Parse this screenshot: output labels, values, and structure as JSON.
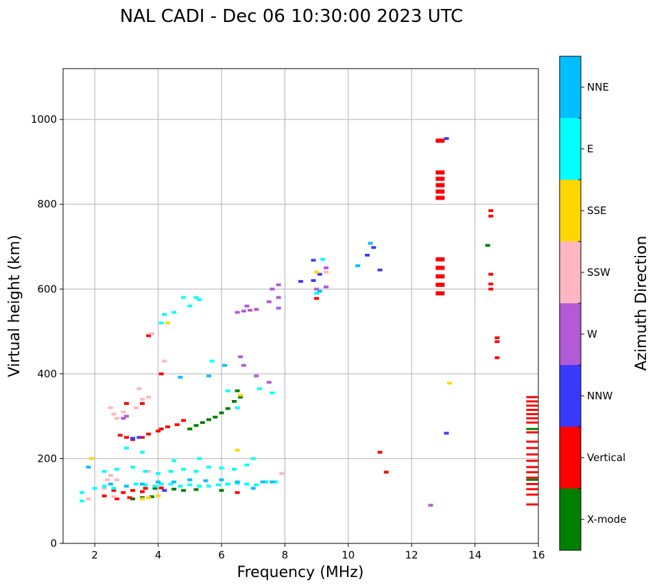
{
  "colors": {
    "X-mode": "#008000",
    "Vertical": "#ff0000",
    "NNW": "#3a3aff",
    "W": "#b35ad6",
    "SSW": "#ffb6c1",
    "SSE": "#ffd700",
    "E": "#00ffff",
    "NNE": "#00bfff"
  },
  "chart_data": {
    "type": "scatter",
    "title": "NAL CADI - Dec 06 10:30:00 2023 UTC",
    "xlabel": "Frequency (MHz)",
    "ylabel": "Virtual height (km)",
    "xlim": [
      1,
      16
    ],
    "ylim": [
      0,
      1120
    ],
    "xticks": [
      "2",
      "4",
      "6",
      "8",
      "10",
      "12",
      "14",
      "16"
    ],
    "yticks": [
      "0",
      "200",
      "400",
      "600",
      "800",
      "1000"
    ],
    "grid": true,
    "colorbar": {
      "title": "Azimuth Direction",
      "categories": [
        "X-mode",
        "Vertical",
        "NNW",
        "W",
        "SSW",
        "SSE",
        "E",
        "NNE"
      ]
    },
    "series": [
      {
        "name": "X-mode",
        "points": [
          [
            5.0,
            270
          ],
          [
            5.2,
            278
          ],
          [
            5.4,
            285
          ],
          [
            5.6,
            292
          ],
          [
            5.8,
            298
          ],
          [
            6.0,
            308
          ],
          [
            6.2,
            318
          ],
          [
            6.4,
            335
          ],
          [
            6.6,
            345
          ],
          [
            6.5,
            360
          ],
          [
            3.2,
            105
          ],
          [
            3.5,
            108
          ],
          [
            3.8,
            110
          ],
          [
            4.5,
            128
          ],
          [
            4.8,
            125
          ],
          [
            5.2,
            127
          ],
          [
            6.0,
            125
          ],
          [
            3.9,
            130
          ],
          [
            14.4,
            703
          ],
          [
            15.8,
            150
          ],
          [
            15.8,
            270
          ]
        ]
      },
      {
        "name": "Vertical",
        "points": [
          [
            2.6,
            125
          ],
          [
            2.9,
            120
          ],
          [
            3.2,
            125
          ],
          [
            3.5,
            122
          ],
          [
            2.3,
            112
          ],
          [
            2.7,
            105
          ],
          [
            3.1,
            108
          ],
          [
            3.6,
            130
          ],
          [
            4.1,
            131
          ],
          [
            2.8,
            255
          ],
          [
            3.0,
            250
          ],
          [
            3.2,
            245
          ],
          [
            3.5,
            250
          ],
          [
            3.7,
            258
          ],
          [
            4.0,
            265
          ],
          [
            4.1,
            270
          ],
          [
            4.3,
            275
          ],
          [
            4.6,
            280
          ],
          [
            4.8,
            290
          ],
          [
            3.0,
            330
          ],
          [
            3.5,
            330
          ],
          [
            4.1,
            400
          ],
          [
            3.7,
            490
          ],
          [
            6.5,
            120
          ],
          [
            9.0,
            578
          ],
          [
            11.0,
            215
          ],
          [
            11.2,
            168
          ],
          [
            12.9,
            950
          ],
          [
            12.9,
            875
          ],
          [
            12.9,
            860
          ],
          [
            12.9,
            845
          ],
          [
            12.9,
            830
          ],
          [
            12.9,
            815
          ],
          [
            12.9,
            670
          ],
          [
            12.9,
            650
          ],
          [
            12.9,
            630
          ],
          [
            12.9,
            610
          ],
          [
            12.9,
            590
          ],
          [
            14.5,
            785
          ],
          [
            14.5,
            772
          ],
          [
            14.5,
            635
          ],
          [
            14.5,
            612
          ],
          [
            14.5,
            600
          ],
          [
            14.7,
            485
          ],
          [
            14.7,
            476
          ],
          [
            14.7,
            438
          ],
          [
            15.8,
            345
          ],
          [
            15.8,
            335
          ],
          [
            15.8,
            325
          ],
          [
            15.8,
            315
          ],
          [
            15.8,
            305
          ],
          [
            15.8,
            295
          ],
          [
            15.8,
            285
          ],
          [
            15.8,
            262
          ],
          [
            15.8,
            240
          ],
          [
            15.8,
            225
          ],
          [
            15.8,
            210
          ],
          [
            15.8,
            195
          ],
          [
            15.8,
            180
          ],
          [
            15.8,
            168
          ],
          [
            15.8,
            155
          ],
          [
            15.8,
            140
          ],
          [
            15.8,
            128
          ],
          [
            15.8,
            115
          ],
          [
            15.8,
            92
          ]
        ]
      },
      {
        "name": "NNW",
        "points": [
          [
            8.5,
            618
          ],
          [
            8.9,
            668
          ],
          [
            8.9,
            620
          ],
          [
            9.1,
            635
          ],
          [
            10.6,
            680
          ],
          [
            10.8,
            698
          ],
          [
            11.0,
            645
          ],
          [
            13.1,
            955
          ],
          [
            13.1,
            260
          ],
          [
            4.2,
            125
          ],
          [
            6.2,
            140
          ],
          [
            7.7,
            145
          ],
          [
            3.2,
            248
          ],
          [
            3.4,
            250
          ]
        ]
      },
      {
        "name": "W",
        "points": [
          [
            6.5,
            545
          ],
          [
            6.7,
            548
          ],
          [
            6.9,
            550
          ],
          [
            7.1,
            552
          ],
          [
            6.8,
            560
          ],
          [
            7.5,
            570
          ],
          [
            7.6,
            600
          ],
          [
            7.8,
            610
          ],
          [
            7.8,
            580
          ],
          [
            7.8,
            555
          ],
          [
            9.0,
            600
          ],
          [
            9.3,
            650
          ],
          [
            9.3,
            605
          ],
          [
            6.6,
            440
          ],
          [
            6.7,
            420
          ],
          [
            7.1,
            395
          ],
          [
            7.5,
            380
          ],
          [
            3.0,
            300
          ],
          [
            2.9,
            295
          ],
          [
            12.6,
            90
          ]
        ]
      },
      {
        "name": "SSW",
        "points": [
          [
            2.5,
            320
          ],
          [
            2.6,
            305
          ],
          [
            2.7,
            295
          ],
          [
            2.9,
            310
          ],
          [
            3.3,
            320
          ],
          [
            3.5,
            340
          ],
          [
            3.4,
            365
          ],
          [
            3.7,
            345
          ],
          [
            2.5,
            160
          ],
          [
            2.4,
            150
          ],
          [
            2.7,
            150
          ],
          [
            3.7,
            170
          ],
          [
            4.2,
            430
          ],
          [
            3.8,
            495
          ],
          [
            9.3,
            640
          ],
          [
            7.9,
            165
          ],
          [
            1.8,
            105
          ],
          [
            2.3,
            130
          ],
          [
            2.6,
            110
          ]
        ]
      },
      {
        "name": "SSE",
        "points": [
          [
            3.5,
            105
          ],
          [
            3.7,
            108
          ],
          [
            4.0,
            112
          ],
          [
            13.2,
            378
          ],
          [
            9.0,
            640
          ],
          [
            6.5,
            220
          ],
          [
            6.6,
            350
          ],
          [
            4.3,
            520
          ],
          [
            1.9,
            200
          ]
        ]
      },
      {
        "name": "E",
        "points": [
          [
            2.0,
            130
          ],
          [
            2.3,
            135
          ],
          [
            2.6,
            130
          ],
          [
            3.0,
            135
          ],
          [
            3.3,
            140
          ],
          [
            3.6,
            138
          ],
          [
            3.9,
            135
          ],
          [
            4.1,
            140
          ],
          [
            4.4,
            140
          ],
          [
            4.7,
            135
          ],
          [
            5.0,
            138
          ],
          [
            5.3,
            135
          ],
          [
            5.6,
            135
          ],
          [
            5.9,
            138
          ],
          [
            6.2,
            140
          ],
          [
            6.5,
            142
          ],
          [
            6.8,
            140
          ],
          [
            7.1,
            138
          ],
          [
            7.4,
            145
          ],
          [
            7.7,
            145
          ],
          [
            2.3,
            170
          ],
          [
            2.7,
            175
          ],
          [
            3.2,
            180
          ],
          [
            3.6,
            170
          ],
          [
            4.0,
            165
          ],
          [
            4.4,
            170
          ],
          [
            4.8,
            175
          ],
          [
            5.2,
            170
          ],
          [
            5.6,
            180
          ],
          [
            6.0,
            178
          ],
          [
            6.4,
            175
          ],
          [
            6.8,
            185
          ],
          [
            7.0,
            200
          ],
          [
            3.0,
            225
          ],
          [
            3.5,
            215
          ],
          [
            4.5,
            195
          ],
          [
            5.3,
            200
          ],
          [
            1.6,
            120
          ],
          [
            1.6,
            100
          ],
          [
            4.1,
            520
          ],
          [
            4.2,
            540
          ],
          [
            4.8,
            580
          ],
          [
            5.0,
            560
          ],
          [
            5.2,
            580
          ],
          [
            5.3,
            575
          ],
          [
            4.5,
            545
          ],
          [
            5.7,
            430
          ],
          [
            6.2,
            360
          ],
          [
            6.5,
            320
          ],
          [
            9.2,
            670
          ],
          [
            9.0,
            590
          ],
          [
            7.6,
            355
          ],
          [
            7.2,
            365
          ]
        ]
      },
      {
        "name": "NNE",
        "points": [
          [
            2.5,
            140
          ],
          [
            3.0,
            135
          ],
          [
            3.5,
            140
          ],
          [
            4.0,
            145
          ],
          [
            4.5,
            145
          ],
          [
            5.0,
            150
          ],
          [
            5.5,
            148
          ],
          [
            6.0,
            150
          ],
          [
            6.5,
            145
          ],
          [
            7.0,
            130
          ],
          [
            7.3,
            145
          ],
          [
            7.6,
            145
          ],
          [
            10.3,
            655
          ],
          [
            10.7,
            708
          ],
          [
            9.1,
            595
          ],
          [
            6.1,
            420
          ],
          [
            5.6,
            395
          ],
          [
            4.7,
            392
          ],
          [
            1.8,
            180
          ]
        ]
      }
    ]
  }
}
